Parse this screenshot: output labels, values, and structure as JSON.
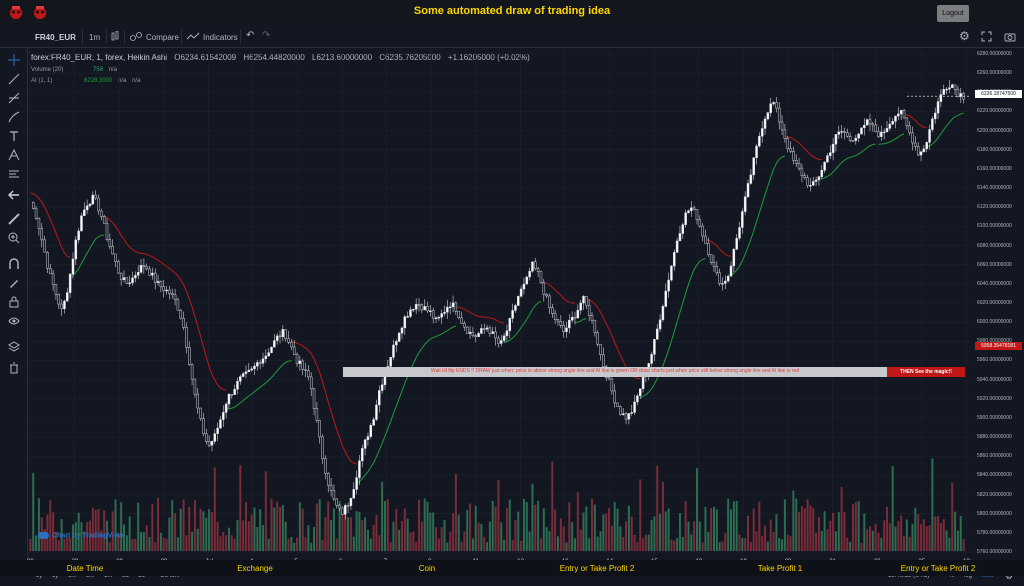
{
  "top": {
    "title": "Some automated draw of trading idea",
    "logout_label": "Logout"
  },
  "header": {
    "symbol": "FR40_EUR",
    "interval": "1m",
    "compare_label": "Compare",
    "indicators_label": "Indicators"
  },
  "legend": {
    "main": "forex:FR40_EUR, 1, forex, Heikin Ashi",
    "open": "O6234.61542009",
    "high": "H6254.44820000",
    "low": "L6213.60000000",
    "close": "C6235.76205000",
    "change": "+1.16205000 (+0.02%)",
    "volume_label": "Volume (20)",
    "volume_val": "758",
    "volume_na": "n/a",
    "ai_label": "AI (1, 1)",
    "ai_val": "6228.3000",
    "ai_na1": "n/a",
    "ai_na2": "n/a"
  },
  "price_axis": {
    "ticks": [
      "6280.00000000",
      "6260.00000000",
      "6240.00000000",
      "6220.00000000",
      "6200.00000000",
      "6180.00000000",
      "6160.00000000",
      "6140.00000000",
      "6120.00000000",
      "6100.00000000",
      "6080.00000000",
      "6060.00000000",
      "6040.00000000",
      "6020.00000000",
      "6000.00000000",
      "5980.00000000",
      "5960.00000000",
      "5940.00000000",
      "5920.00000000",
      "5900.00000000",
      "5880.00000000",
      "5860.00000000",
      "5840.00000000",
      "5820.00000000",
      "5800.00000000",
      "5780.00000000",
      "5760.00000000"
    ],
    "current_price": "6236.18747500",
    "banner_price": "5958.35478181"
  },
  "time_axis": {
    "labels": [
      "00",
      "28",
      "29",
      "30",
      "Jul",
      "4",
      "5",
      "6",
      "7",
      "8",
      "11",
      "12",
      "13",
      "14",
      "15",
      "18",
      "19",
      "20",
      "21",
      "22",
      "25",
      "18:"
    ]
  },
  "bottom": {
    "ranges": [
      "5y",
      "1y",
      "6m",
      "3m",
      "1m",
      "5d",
      "1d"
    ],
    "goto": "Go to...",
    "time": "15:46:22 (UTC)",
    "pct": "%",
    "log": "log",
    "auto": "auto"
  },
  "banner": {
    "text": "Wait till flip ENDS  !!    DRAW just when:  price is above strong angle line and AI line is green           OR          draw shorts just when price still below strong angle line and AI line is red",
    "cta": "THEN See the magic!!"
  },
  "brand": "Chart by TradingView",
  "footer": [
    "Date Time",
    "Exchange",
    "Coin",
    "Entry or Take Profit 2",
    "Take Profit 1",
    "Entry or Take Profit 2"
  ],
  "chart_data": {
    "type": "candlestick",
    "ylim": [
      5760,
      6280
    ],
    "colors": {
      "up": "#ffffff",
      "down": "#d1d4dc",
      "ai_up": "#1e9e3a",
      "ai_down": "#c01818",
      "vol_up": "#2d6e52",
      "vol_down": "#7a2d39"
    },
    "close_path": [
      6125,
      6110,
      6080,
      6050,
      6030,
      6010,
      6040,
      6080,
      6110,
      6125,
      6130,
      6115,
      6090,
      6070,
      6050,
      6040,
      6045,
      6055,
      6060,
      6050,
      6040,
      6035,
      6030,
      6020,
      6000,
      5960,
      5920,
      5890,
      5870,
      5880,
      5900,
      5920,
      5930,
      5940,
      5945,
      5950,
      5960,
      5965,
      5975,
      5985,
      5990,
      5975,
      5960,
      5950,
      5940,
      5900,
      5860,
      5830,
      5810,
      5800,
      5810,
      5830,
      5860,
      5880,
      5900,
      5930,
      5950,
      5970,
      5990,
      6005,
      6015,
      6020,
      6015,
      6010,
      6000,
      6010,
      6020,
      6015,
      6000,
      5990,
      5985,
      5990,
      5995,
      5985,
      5975,
      5990,
      6010,
      6030,
      6040,
      6060,
      6050,
      6030,
      6010,
      6000,
      5990,
      6000,
      6010,
      6025,
      6010,
      5990,
      5960,
      5940,
      5920,
      5905,
      5900,
      5910,
      5930,
      5950,
      5970,
      6000,
      6030,
      6060,
      6090,
      6110,
      6120,
      6110,
      6090,
      6070,
      6050,
      6040,
      6050,
      6080,
      6110,
      6140,
      6170,
      6200,
      6220,
      6230,
      6210,
      6190,
      6170,
      6160,
      6150,
      6140,
      6150,
      6165,
      6180,
      6195,
      6200,
      6190,
      6195,
      6200,
      6210,
      6200,
      6195,
      6205,
      6215,
      6220,
      6205,
      6190,
      6175,
      6185,
      6210,
      6230,
      6245,
      6250,
      6240,
      6236
    ]
  }
}
